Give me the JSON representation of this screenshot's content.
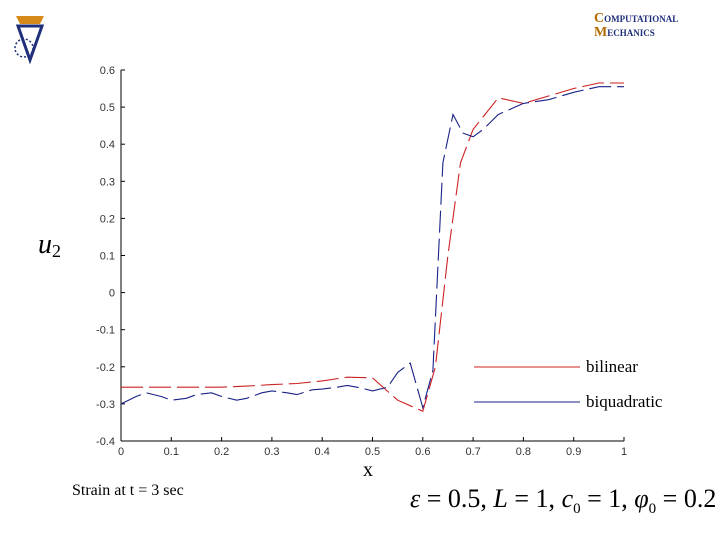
{
  "logos": {
    "left_icon": "institution-logo-icon",
    "right_line1": "OMPUTATIONAL",
    "right_line2": "ECHANICS",
    "right_initial1": "C",
    "right_initial2": "M"
  },
  "caption": "Strain at t = 3 sec",
  "formula": {
    "eps": "ε",
    "eps_val": " = 0.5, ",
    "L": "L",
    "L_val": " = 1, ",
    "c": "c",
    "c_sub": "0",
    "c_val": " = 1, ",
    "phi": "φ",
    "phi_sub": "0",
    "phi_val": " = 0.2"
  },
  "chart_data": {
    "type": "line",
    "xlabel": "x",
    "ylabel": "u",
    "ylabel_sub": "2",
    "xlim": [
      0,
      1
    ],
    "ylim": [
      -0.4,
      0.6
    ],
    "xticks": [
      "0",
      "0.1",
      "0.2",
      "0.3",
      "0.4",
      "0.5",
      "0.6",
      "0.7",
      "0.8",
      "0.9",
      "1"
    ],
    "yticks": [
      "-0.4",
      "-0.3",
      "-0.2",
      "-0.1",
      "0",
      "0.1",
      "0.2",
      "0.3",
      "0.4",
      "0.5",
      "0.6"
    ],
    "grid": false,
    "legend_position": "right",
    "series": [
      {
        "name": "bilinear",
        "color": "#cc2222",
        "x": [
          0,
          0.05,
          0.1,
          0.15,
          0.2,
          0.25,
          0.3,
          0.35,
          0.4,
          0.45,
          0.5,
          0.55,
          0.6,
          0.625,
          0.65,
          0.675,
          0.7,
          0.75,
          0.8,
          0.85,
          0.9,
          0.95,
          1
        ],
        "y": [
          -0.255,
          -0.255,
          -0.255,
          -0.255,
          -0.255,
          -0.252,
          -0.248,
          -0.245,
          -0.238,
          -0.228,
          -0.23,
          -0.29,
          -0.32,
          -0.2,
          0.1,
          0.35,
          0.44,
          0.525,
          0.51,
          0.53,
          0.55,
          0.565,
          0.565
        ]
      },
      {
        "name": "biquadratic",
        "color": "#1a2288",
        "x": [
          0,
          0.03,
          0.05,
          0.08,
          0.1,
          0.13,
          0.15,
          0.18,
          0.2,
          0.23,
          0.25,
          0.28,
          0.3,
          0.33,
          0.35,
          0.38,
          0.4,
          0.43,
          0.45,
          0.48,
          0.5,
          0.53,
          0.55,
          0.575,
          0.6,
          0.62,
          0.64,
          0.66,
          0.68,
          0.7,
          0.72,
          0.75,
          0.8,
          0.85,
          0.9,
          0.95,
          1
        ],
        "y": [
          -0.3,
          -0.28,
          -0.27,
          -0.28,
          -0.29,
          -0.285,
          -0.275,
          -0.27,
          -0.28,
          -0.29,
          -0.285,
          -0.27,
          -0.265,
          -0.27,
          -0.275,
          -0.262,
          -0.26,
          -0.255,
          -0.25,
          -0.258,
          -0.265,
          -0.255,
          -0.215,
          -0.19,
          -0.31,
          -0.21,
          0.35,
          0.48,
          0.43,
          0.42,
          0.44,
          0.48,
          0.51,
          0.52,
          0.54,
          0.555,
          0.555
        ]
      }
    ]
  }
}
